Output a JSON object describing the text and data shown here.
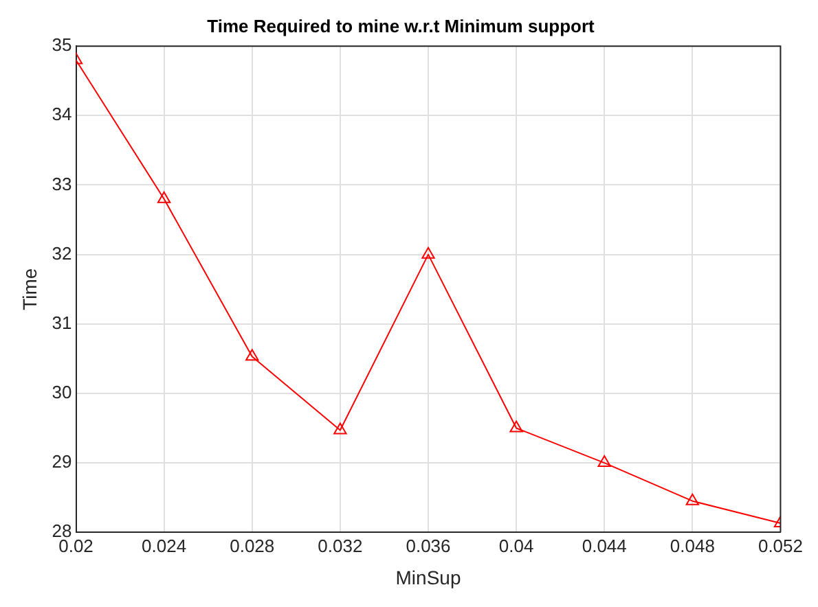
{
  "chart_data": {
    "type": "line",
    "title": "Time Required to mine w.r.t Minimum support",
    "xlabel": "MinSup",
    "ylabel": "Time",
    "x": [
      0.02,
      0.024,
      0.028,
      0.032,
      0.036,
      0.04,
      0.044,
      0.048,
      0.052
    ],
    "series": [
      {
        "color": "#ff0000",
        "values": [
          34.8,
          32.8,
          30.53,
          29.47,
          32.0,
          29.5,
          29.0,
          28.45,
          28.13
        ]
      }
    ],
    "xlim": [
      0.02,
      0.052
    ],
    "xticks": [
      0.02,
      0.024,
      0.028,
      0.032,
      0.036,
      0.04,
      0.044,
      0.048,
      0.052
    ],
    "ylim": [
      28,
      35
    ],
    "yticks": [
      28,
      29,
      30,
      31,
      32,
      33,
      34,
      35
    ],
    "grid": true,
    "marker": "triangle",
    "line_style": "solid",
    "legend": false
  }
}
